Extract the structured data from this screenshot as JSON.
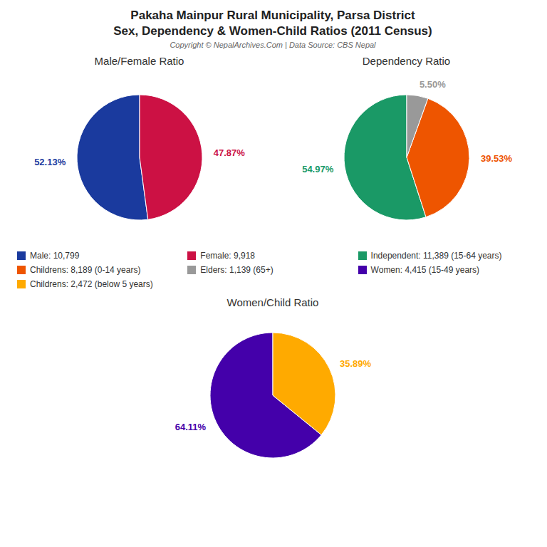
{
  "title": "Pakaha Mainpur Rural Municipality, Parsa District",
  "subtitle": "Sex, Dependency & Women-Child Ratios (2011 Census)",
  "annotations": [
    "Copyright © NepalArchives.Com | Data Source: CBS Nepal"
  ],
  "legend": "center",
  "chart_data": [
    {
      "type": "pie",
      "title": "Male/Female Ratio",
      "categories": [
        "Male: 10,799",
        "Female: 9,918"
      ],
      "values": [
        52.13,
        47.87
      ],
      "value_labels": [
        "52.13%",
        "47.87%"
      ],
      "colors": [
        "#1a3a9e",
        "#cc1144"
      ],
      "data_labels": true
    },
    {
      "type": "pie",
      "title": "Dependency Ratio",
      "categories": [
        "Independent: 11,389 (15-64 years)",
        "Childrens: 8,189 (0-14 years)",
        "Elders: 1,139 (65+)"
      ],
      "values": [
        54.97,
        39.53,
        5.5
      ],
      "value_labels": [
        "54.97%",
        "39.53%",
        "5.50%"
      ],
      "colors": [
        "#1a9966",
        "#ee5500",
        "#999999"
      ],
      "data_labels": true
    },
    {
      "type": "pie",
      "title": "Women/Child Ratio",
      "categories": [
        "Women: 4,415 (15-49 years)",
        "Childrens: 2,472 (below 5 years)"
      ],
      "values": [
        64.11,
        35.89
      ],
      "value_labels": [
        "64.11%",
        "35.89%"
      ],
      "colors": [
        "#4400aa",
        "#ffaa00"
      ],
      "data_labels": true
    }
  ]
}
